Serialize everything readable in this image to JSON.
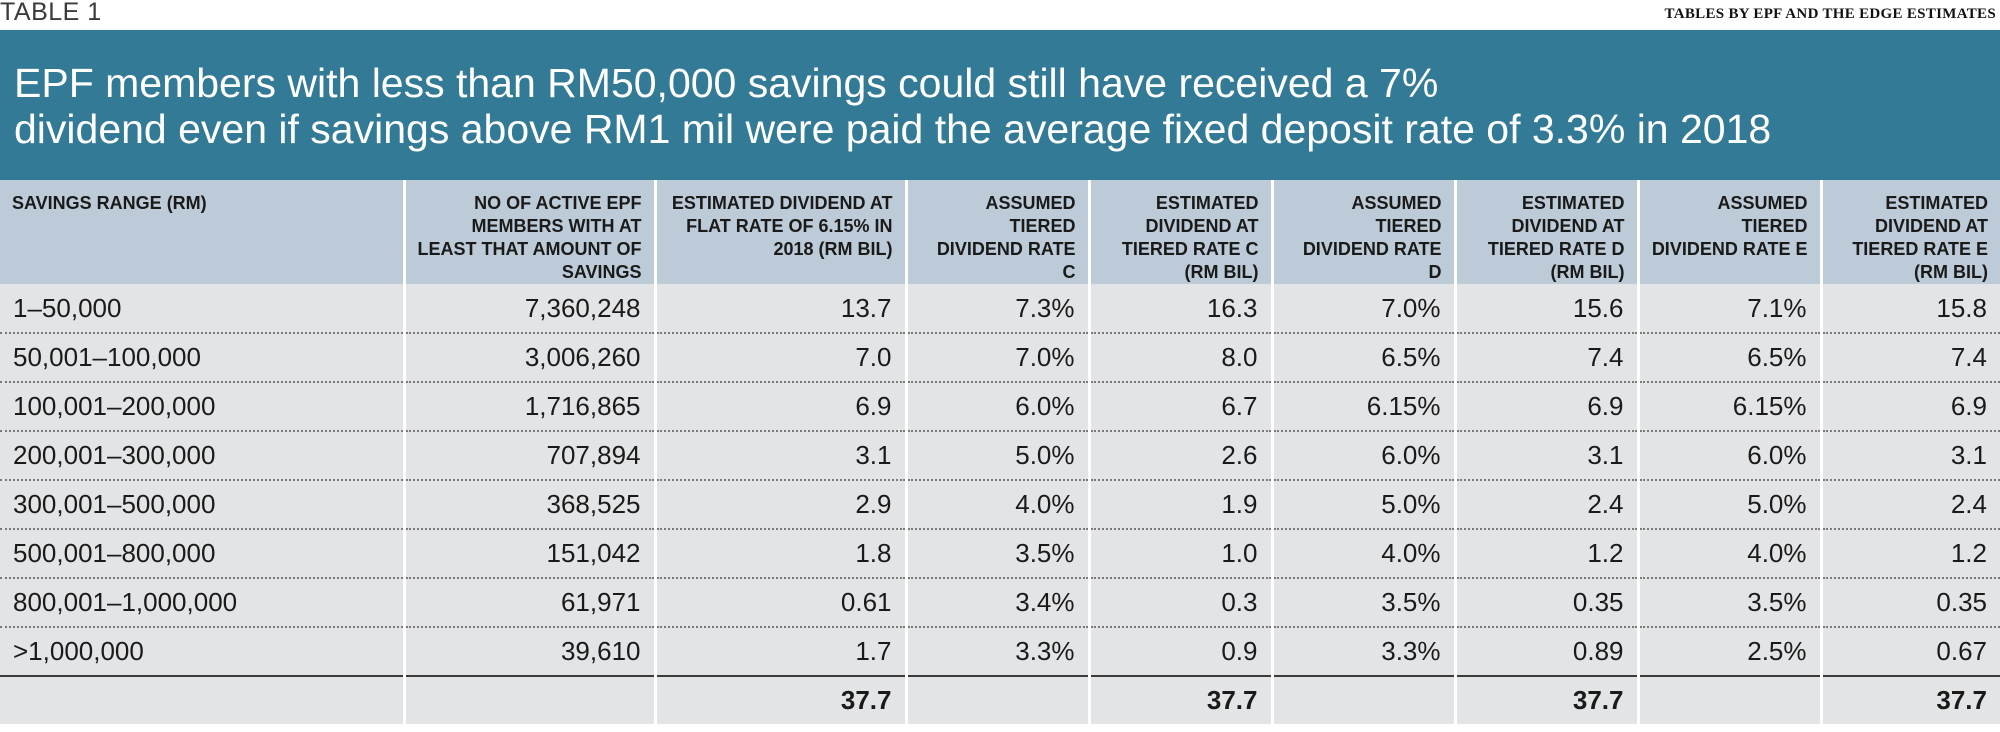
{
  "header": {
    "table_label": "TABLE 1",
    "source": "TABLES BY EPF AND THE EDGE ESTIMATES"
  },
  "banner": {
    "line1": "EPF members with less than RM50,000 savings could still have received a 7%",
    "line2": "dividend even if savings above RM1 mil were paid the average fixed deposit rate of 3.3% in 2018"
  },
  "table": {
    "columns": [
      "SAVINGS RANGE (RM)",
      "NO OF ACTIVE EPF MEMBERS WITH AT LEAST THAT AMOUNT OF SAVINGS",
      "ESTIMATED DIVIDEND AT FLAT RATE OF 6.15% IN 2018 (RM BIL)",
      "ASSUMED TIERED DIVIDEND RATE C",
      "ESTIMATED DIVIDEND AT TIERED RATE C (RM BIL)",
      "ASSUMED TIERED DIVIDEND RATE D",
      "ESTIMATED DIVIDEND AT TIERED RATE D (RM BIL)",
      "ASSUMED TIERED DIVIDEND RATE E",
      "ESTIMATED DIVIDEND AT TIERED RATE E (RM BIL)"
    ],
    "rows": [
      [
        "1–50,000",
        "7,360,248",
        "13.7",
        "7.3%",
        "16.3",
        "7.0%",
        "15.6",
        "7.1%",
        "15.8"
      ],
      [
        "50,001–100,000",
        "3,006,260",
        "7.0",
        "7.0%",
        "8.0",
        "6.5%",
        "7.4",
        "6.5%",
        "7.4"
      ],
      [
        "100,001–200,000",
        "1,716,865",
        "6.9",
        "6.0%",
        "6.7",
        "6.15%",
        "6.9",
        "6.15%",
        "6.9"
      ],
      [
        "200,001–300,000",
        "707,894",
        "3.1",
        "5.0%",
        "2.6",
        "6.0%",
        "3.1",
        "6.0%",
        "3.1"
      ],
      [
        "300,001–500,000",
        "368,525",
        "2.9",
        "4.0%",
        "1.9",
        "5.0%",
        "2.4",
        "5.0%",
        "2.4"
      ],
      [
        "500,001–800,000",
        "151,042",
        "1.8",
        "3.5%",
        "1.0",
        "4.0%",
        "1.2",
        "4.0%",
        "1.2"
      ],
      [
        "800,001–1,000,000",
        "61,971",
        "0.61",
        "3.4%",
        "0.3",
        "3.5%",
        "0.35",
        "3.5%",
        "0.35"
      ],
      [
        ">1,000,000",
        "39,610",
        "1.7",
        "3.3%",
        "0.9",
        "3.3%",
        "0.89",
        "2.5%",
        "0.67"
      ]
    ],
    "totals": [
      "",
      "",
      "37.7",
      "",
      "37.7",
      "",
      "37.7",
      "",
      "37.7"
    ]
  }
}
